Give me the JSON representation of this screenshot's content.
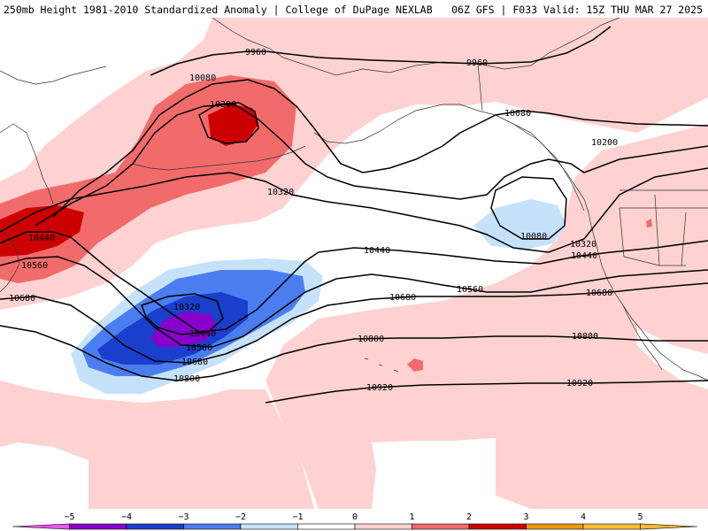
{
  "header": {
    "title": "250mb Height 1981-2010 Standardized Anomaly | College of DuPage NEXLAB",
    "run_info": "06Z GFS | F033 Valid: 15Z THU MAR 27 2025"
  },
  "colors": {
    "neg5": "#ee55ee",
    "neg4": "#8800cc",
    "neg3": "#1a3fcc",
    "neg2": "#4a7ef0",
    "neg1": "#c6e2fb",
    "zero": "#ffffff",
    "pos1": "#ffd2d2",
    "pos2": "#f26b6b",
    "pos3": "#cc0000",
    "pos4": "#ee9900",
    "pos5": "#ffbb33",
    "land": "#ffd2d2",
    "contour": "#000000",
    "coast": "#333333"
  },
  "contour_labels": [
    {
      "text": "9960"
    },
    {
      "text": "9960"
    },
    {
      "text": "10080"
    },
    {
      "text": "10200"
    },
    {
      "text": "10080"
    },
    {
      "text": "10200"
    },
    {
      "text": "10320"
    },
    {
      "text": "10080"
    },
    {
      "text": "10320"
    },
    {
      "text": "10440"
    },
    {
      "text": "10440"
    },
    {
      "text": "10560"
    },
    {
      "text": "10680"
    },
    {
      "text": "10440"
    },
    {
      "text": "10320"
    },
    {
      "text": "10440"
    },
    {
      "text": "10560"
    },
    {
      "text": "10680"
    },
    {
      "text": "10680"
    },
    {
      "text": "10800"
    },
    {
      "text": "10560"
    },
    {
      "text": "10680"
    },
    {
      "text": "10800"
    },
    {
      "text": "10800"
    },
    {
      "text": "10920"
    },
    {
      "text": "10920"
    }
  ],
  "colorbar": {
    "ticks": [
      "−5",
      "−4",
      "−3",
      "−2",
      "−1",
      "0",
      "1",
      "2",
      "3",
      "4",
      "5"
    ]
  }
}
